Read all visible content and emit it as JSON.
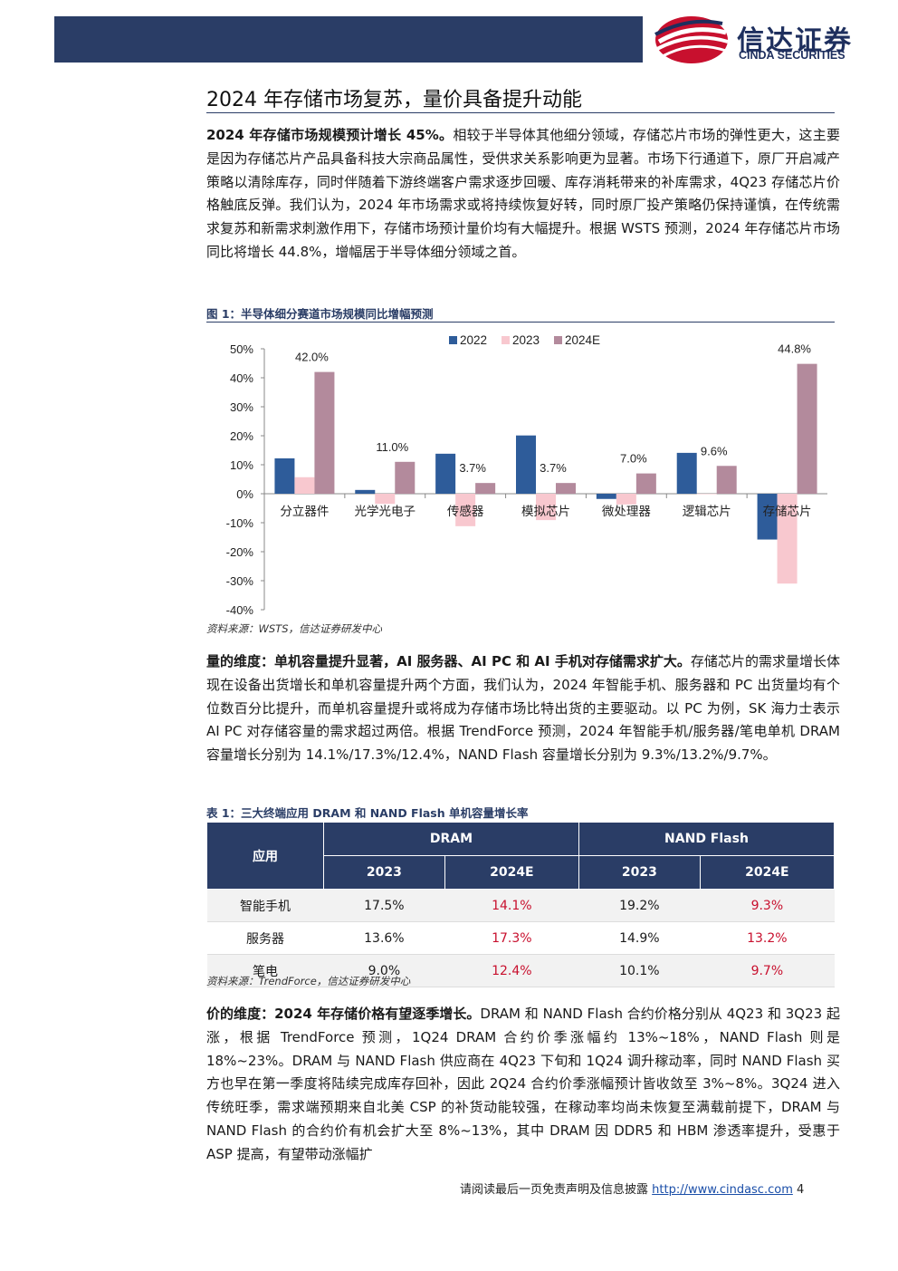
{
  "header": {
    "logo_cn": "信达证券",
    "logo_en": "CINDA SECURITIES"
  },
  "title": "2024 年存储市场复苏，量价具备提升动能",
  "para1": {
    "lead": "2024 年存储市场规模预计增长 45%。",
    "body": "相较于半导体其他细分领域，存储芯片市场的弹性更大，这主要是因为存储芯片产品具备科技大宗商品属性，受供求关系影响更为显著。市场下行通道下，原厂开启减产策略以清除库存，同时伴随着下游终端客户需求逐步回暖、库存消耗带来的补库需求，4Q23 存储芯片价格触底反弹。我们认为，2024 年市场需求或将持续恢复好转，同时原厂投产策略仍保持谨慎，在传统需求复苏和新需求刺激作用下，存储市场预计量价均有大幅提升。根据 WSTS 预测，2024 年存储芯片市场同比将增长 44.8%，增幅居于半导体细分领域之首。"
  },
  "figure1": {
    "caption": "图 1：半导体细分赛道市场规模同比增幅预测",
    "source": "资料来源：WSTS，信达证券研发中心"
  },
  "chart_data": {
    "type": "bar",
    "categories": [
      "分立器件",
      "光学光电子",
      "传感器",
      "模拟芯片",
      "微处理器",
      "逻辑芯片",
      "存储芯片"
    ],
    "series": [
      {
        "name": "2022",
        "color": "#2e5c9a",
        "values": [
          12.2,
          1.3,
          13.8,
          20.1,
          -1.8,
          14.1,
          -15.8
        ]
      },
      {
        "name": "2023",
        "color": "#f8c8cf",
        "values": [
          5.7,
          -3.5,
          -11.2,
          -9.1,
          -3.7,
          -0.1,
          -31.0
        ]
      },
      {
        "name": "2024E",
        "color": "#b38a9c",
        "values": [
          42.0,
          11.0,
          3.7,
          3.7,
          7.0,
          9.6,
          44.8
        ]
      }
    ],
    "data_labels_2024E": [
      "42.0%",
      "11.0%",
      "3.7%",
      "3.7%",
      "7.0%",
      "9.6%",
      "44.8%"
    ],
    "yticks": [
      "50%",
      "40%",
      "30%",
      "20%",
      "10%",
      "0%",
      "-10%",
      "-20%",
      "-30%",
      "-40%"
    ],
    "ylim": [
      -40,
      50
    ],
    "legend_position": "top",
    "grid": false
  },
  "para2": {
    "lead": "量的维度：单机容量提升显著，AI 服务器、AI PC 和 AI 手机对存储需求扩大。",
    "body": "存储芯片的需求量增长体现在设备出货增长和单机容量提升两个方面，我们认为，2024 年智能手机、服务器和 PC 出货量均有个位数百分比提升，而单机容量提升或将成为存储市场比特出货的主要驱动。以 PC 为例，SK 海力士表示 AI PC 对存储容量的需求超过两倍。根据 TrendForce 预测，2024 年智能手机/服务器/笔电单机 DRAM 容量增长分别为 14.1%/17.3%/12.4%，NAND Flash 容量增长分别为 9.3%/13.2%/9.7%。"
  },
  "table1": {
    "caption": "表 1：三大终端应用 DRAM 和 NAND Flash 单机容量增长率",
    "header_app": "应用",
    "header_groups": [
      "DRAM",
      "NAND Flash"
    ],
    "header_years": [
      "2023",
      "2024E",
      "2023",
      "2024E"
    ],
    "rows": [
      {
        "app": "智能手机",
        "cells": [
          "17.5%",
          "14.1%",
          "19.2%",
          "9.3%"
        ]
      },
      {
        "app": "服务器",
        "cells": [
          "13.6%",
          "17.3%",
          "14.9%",
          "13.2%"
        ]
      },
      {
        "app": "笔电",
        "cells": [
          "9.0%",
          "12.4%",
          "10.1%",
          "9.7%"
        ]
      }
    ],
    "source": "资料来源：TrendForce，信达证券研发中心"
  },
  "para3": {
    "lead": "价的维度：2024 年存储价格有望逐季增长。",
    "body": "DRAM 和 NAND Flash 合约价格分别从 4Q23 和 3Q23 起涨，根据 TrendForce 预测，1Q24 DRAM 合约价季涨幅约 13%~18%，NAND Flash 则是 18%~23%。DRAM 与 NAND Flash 供应商在 4Q23 下旬和 1Q24 调升稼动率，同时 NAND Flash 买方也早在第一季度将陆续完成库存回补，因此 2Q24 合约价季涨幅预计皆收敛至 3%~8%。3Q24 进入传统旺季，需求端预期来自北美 CSP 的补货动能较强，在稼动率均尚未恢复至满载前提下，DRAM 与 NAND Flash 的合约价有机会扩大至 8%~13%，其中 DRAM 因 DDR5 和 HBM 渗透率提升，受惠于 ASP 提高，有望带动涨幅扩"
  },
  "footer": {
    "notice": "请阅读最后一页免责声明及信息披露",
    "link": "http://www.cindasc.com",
    "page": "4"
  }
}
